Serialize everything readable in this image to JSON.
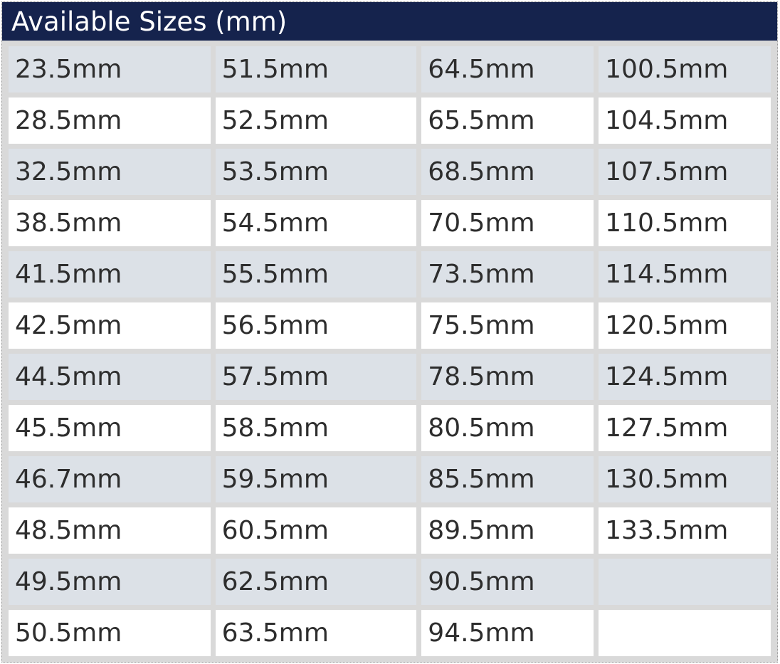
{
  "table": {
    "title": "Available Sizes (mm)",
    "unit": "mm",
    "columns": [
      [
        "23.5mm",
        "28.5mm",
        "32.5mm",
        "38.5mm",
        "41.5mm",
        "42.5mm",
        "44.5mm",
        "45.5mm",
        "46.7mm",
        "48.5mm",
        "49.5mm",
        "50.5mm"
      ],
      [
        "51.5mm",
        "52.5mm",
        "53.5mm",
        "54.5mm",
        "55.5mm",
        "56.5mm",
        "57.5mm",
        "58.5mm",
        "59.5mm",
        "60.5mm",
        "62.5mm",
        "63.5mm"
      ],
      [
        "64.5mm",
        "65.5mm",
        "68.5mm",
        "70.5mm",
        "73.5mm",
        "75.5mm",
        "78.5mm",
        "80.5mm",
        "85.5mm",
        "89.5mm",
        "90.5mm",
        "94.5mm"
      ],
      [
        "100.5mm",
        "104.5mm",
        "107.5mm",
        "110.5mm",
        "114.5mm",
        "120.5mm",
        "124.5mm",
        "127.5mm",
        "130.5mm",
        "133.5mm",
        "",
        ""
      ]
    ],
    "colors": {
      "header_bg": "#15234d",
      "header_text": "#ffffff",
      "stripe_bg": "#dce1e7",
      "row_bg": "#ffffff",
      "table_bg": "#d9d9d9",
      "cell_text": "#2d2d2d",
      "border_color": "#999999"
    }
  }
}
